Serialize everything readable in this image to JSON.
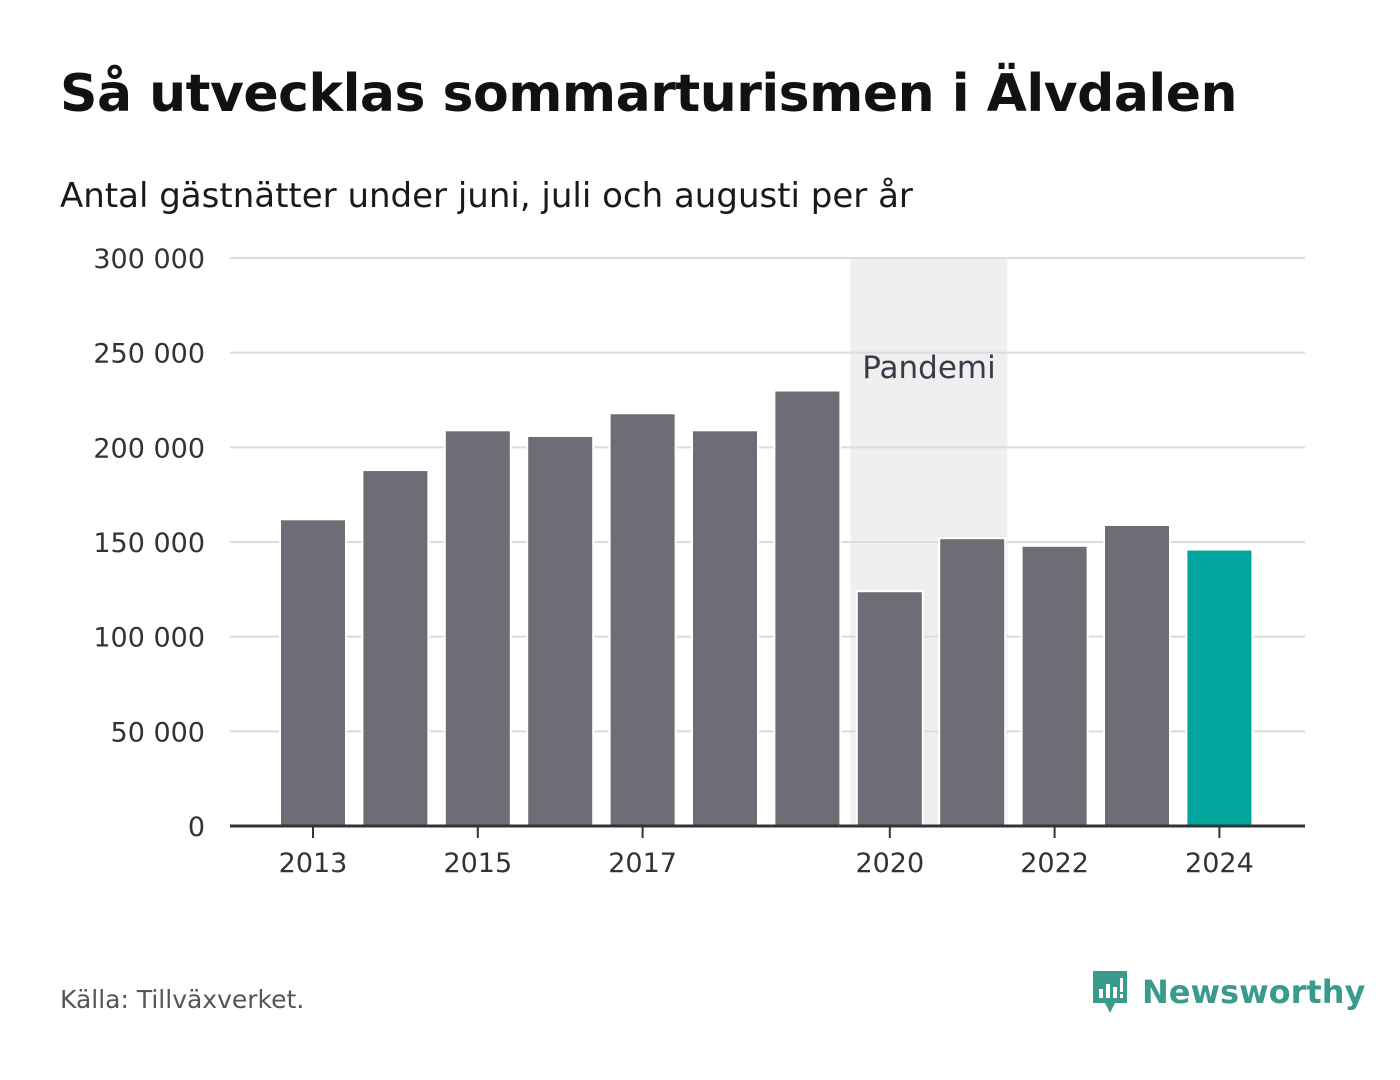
{
  "header": {
    "title": "Så utvecklas sommarturismen i Älvdalen",
    "subtitle": "Antal gästnätter under juni, juli och augusti per år"
  },
  "chart_data": {
    "type": "bar",
    "categories": [
      "2013",
      "2014",
      "2015",
      "2016",
      "2017",
      "2018",
      "2019",
      "2020",
      "2021",
      "2022",
      "2023",
      "2024"
    ],
    "values": [
      162000,
      188000,
      209000,
      206000,
      218000,
      209000,
      230000,
      124000,
      152000,
      148000,
      159000,
      146000
    ],
    "x_tick_labels": [
      "2013",
      "2015",
      "2017",
      "2020",
      "2022",
      "2024"
    ],
    "y_ticks": [
      0,
      50000,
      100000,
      150000,
      200000,
      250000,
      300000
    ],
    "y_tick_labels": [
      "0",
      "50 000",
      "100 000",
      "150 000",
      "200 000",
      "250 000",
      "300 000"
    ],
    "ylim": [
      0,
      300000
    ],
    "grid": true,
    "annotation": {
      "label": "Pandemi",
      "from": "2020",
      "to": "2021"
    },
    "colors": {
      "default": "#6e6d75",
      "highlight": "#00a59c",
      "band": "#efefef",
      "grid": "#dcdcdc",
      "axis": "#333333"
    },
    "highlight_category": "2024"
  },
  "footer": {
    "source": "Källa: Tillväxverket.",
    "brand": "Newsworthy",
    "brand_icon": "bar-chart-icon"
  }
}
